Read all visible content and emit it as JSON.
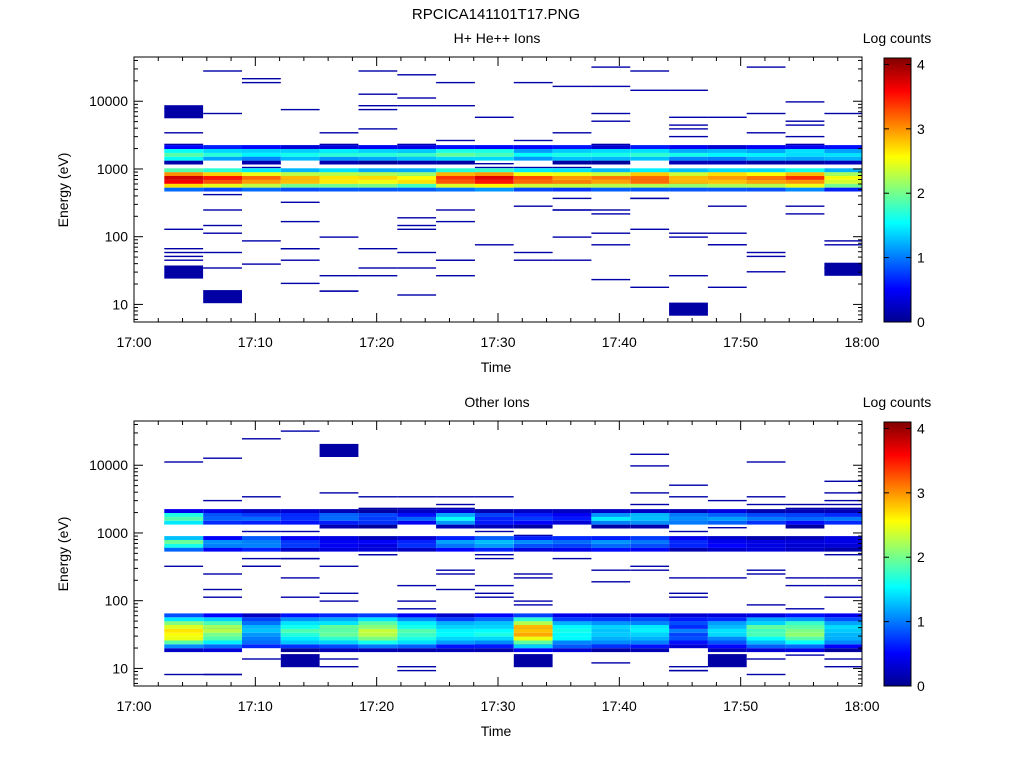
{
  "figure": {
    "title": "RPCICA141101T17.PNG"
  },
  "colors": {
    "colormap": [
      "#00008f",
      "#0000ff",
      "#0080ff",
      "#00ffff",
      "#80ff80",
      "#ffff00",
      "#ff8000",
      "#ff0000",
      "#800000"
    ],
    "axis": "#000000",
    "background": "#ffffff"
  },
  "chart_data": [
    {
      "type": "heatmap",
      "title": "H+ He++ Ions",
      "xlabel": "Time",
      "ylabel": "Energy (eV)",
      "colorbar_label": "Log counts",
      "colorbar_ticks": [
        "0",
        "1",
        "2",
        "3",
        "4"
      ],
      "colorbar_range": [
        0,
        4.1
      ],
      "y_scale": "log",
      "ylim": [
        5.5,
        45000
      ],
      "y_ticks": [
        "10",
        "100",
        "1000",
        "10000"
      ],
      "x_ticks": [
        "17:00",
        "17:10",
        "17:20",
        "17:30",
        "17:40",
        "17:50",
        "18:00"
      ],
      "xlim_minutes": [
        0,
        60
      ],
      "time_bins_minutes": [
        2.5,
        5.7,
        8.9,
        12.1,
        15.3,
        18.5,
        21.7,
        24.9,
        28.1,
        31.3,
        34.5,
        37.7,
        40.9,
        44.1,
        47.3,
        50.5,
        53.7,
        56.9,
        60.0
      ],
      "core_band": {
        "log_counts": [
          3.8,
          3.4,
          3.1,
          2.9,
          2.8,
          2.8,
          2.7,
          3.5,
          3.7,
          3.2,
          3.1,
          3.0,
          3.2,
          3.0,
          3.1,
          3.0,
          3.3,
          2.6
        ],
        "energy_range_eV": [
          500,
          1000
        ]
      },
      "upper_band": {
        "log_counts": [
          2.0,
          1.8,
          1.6,
          1.6,
          1.6,
          1.7,
          1.7,
          2.0,
          1.9,
          1.5,
          1.6,
          1.6,
          1.7,
          1.5,
          1.5,
          1.5,
          1.5,
          1.5
        ],
        "energy_range_eV": [
          1300,
          2100
        ]
      },
      "sparse_counts": [
        {
          "time_bin": 0,
          "energy_eV": 30,
          "log_counts": 0.1
        },
        {
          "time_bin": 1,
          "energy_eV": 13,
          "log_counts": 0.1
        },
        {
          "time_bin": 0,
          "energy_eV": 7000,
          "log_counts": 0.1
        },
        {
          "time_bin": 13,
          "energy_eV": 8.5,
          "log_counts": 0.1
        },
        {
          "time_bin": 17,
          "energy_eV": 33,
          "log_counts": 0.1
        }
      ]
    },
    {
      "type": "heatmap",
      "title": "Other Ions",
      "xlabel": "Time",
      "ylabel": "Energy (eV)",
      "colorbar_label": "Log counts",
      "colorbar_ticks": [
        "0",
        "1",
        "2",
        "3",
        "4"
      ],
      "colorbar_range": [
        0,
        4.1
      ],
      "y_scale": "log",
      "ylim": [
        5.5,
        45000
      ],
      "y_ticks": [
        "10",
        "100",
        "1000",
        "10000"
      ],
      "x_ticks": [
        "17:00",
        "17:10",
        "17:20",
        "17:30",
        "17:40",
        "17:50",
        "18:00"
      ],
      "xlim_minutes": [
        0,
        60
      ],
      "time_bins_minutes": [
        2.5,
        5.7,
        8.9,
        12.1,
        15.3,
        18.5,
        21.7,
        24.9,
        28.1,
        31.3,
        34.5,
        37.7,
        40.9,
        44.1,
        47.3,
        50.5,
        53.7,
        56.9,
        60.0
      ],
      "low_band": {
        "log_counts": [
          2.7,
          2.2,
          1.2,
          1.8,
          2.0,
          2.3,
          1.8,
          1.5,
          1.6,
          2.9,
          1.6,
          1.3,
          1.4,
          0.9,
          1.3,
          1.9,
          2.1,
          1.4
        ],
        "energy_range_eV": [
          20,
          60
        ]
      },
      "upper_band": {
        "log_counts": [
          1.9,
          1.0,
          0.9,
          0.8,
          0.9,
          0.8,
          0.8,
          1.5,
          0.8,
          0.7,
          0.6,
          1.4,
          1.3,
          1.2,
          1.1,
          1.0,
          0.9,
          0.9
        ],
        "energy_range_eV": [
          1300,
          2100
        ]
      },
      "mid_band": {
        "log_counts": [
          1.9,
          1.0,
          1.2,
          0.7,
          0.5,
          0.5,
          0.6,
          1.2,
          1.3,
          1.0,
          0.9,
          1.1,
          1.0,
          0.6,
          0.5,
          0.4,
          0.4,
          0.4
        ],
        "energy_range_eV": [
          550,
          900
        ]
      },
      "sparse_counts": [
        {
          "time_bin": 3,
          "energy_eV": 13,
          "log_counts": 0.1
        },
        {
          "time_bin": 9,
          "energy_eV": 13,
          "log_counts": 0.1
        },
        {
          "time_bin": 14,
          "energy_eV": 13,
          "log_counts": 0.1
        },
        {
          "time_bin": 4,
          "energy_eV": 16500,
          "log_counts": 0.1
        }
      ]
    }
  ]
}
